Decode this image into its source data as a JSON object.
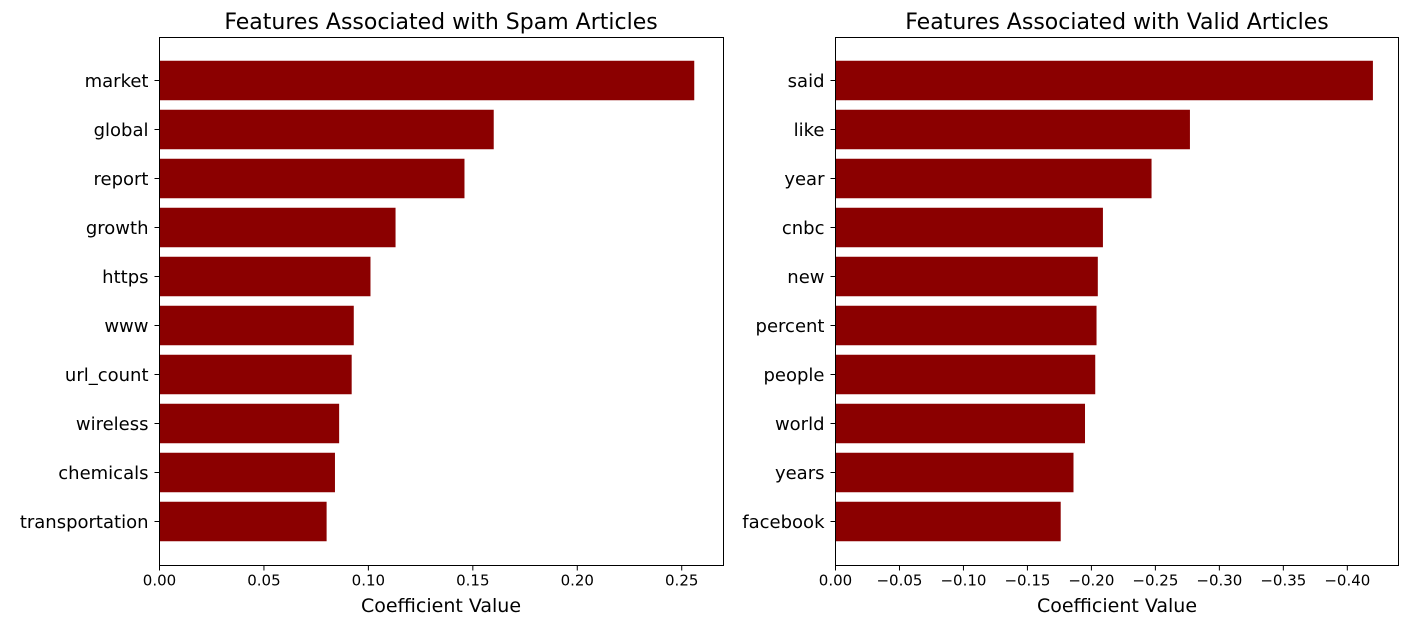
{
  "chart_data": [
    {
      "type": "bar",
      "orientation": "horizontal",
      "title": "Features Associated with Spam Articles",
      "xlabel": "Coefficient Value",
      "ylabel": "",
      "categories": [
        "market",
        "global",
        "report",
        "growth",
        "https",
        "www",
        "url_count",
        "wireless",
        "chemicals",
        "transportation"
      ],
      "values": [
        0.256,
        0.16,
        0.146,
        0.113,
        0.101,
        0.093,
        0.092,
        0.086,
        0.084,
        0.08
      ],
      "xlim": [
        0,
        0.27
      ],
      "xticks": [
        0,
        0.05,
        0.1,
        0.15,
        0.2,
        0.25
      ],
      "xtick_labels": [
        "0.00",
        "0.05",
        "0.10",
        "0.15",
        "0.20",
        "0.25"
      ],
      "bar_color": "#8b0000",
      "grid": false
    },
    {
      "type": "bar",
      "orientation": "horizontal",
      "x_axis_inverted": true,
      "title": "Features Associated with Valid Articles",
      "xlabel": "Coefficient Value",
      "ylabel": "",
      "categories": [
        "said",
        "like",
        "year",
        "cnbc",
        "new",
        "percent",
        "people",
        "world",
        "years",
        "facebook"
      ],
      "values": [
        -0.42,
        -0.277,
        -0.247,
        -0.209,
        -0.205,
        -0.204,
        -0.203,
        -0.195,
        -0.186,
        -0.176
      ],
      "xlim": [
        0,
        -0.44
      ],
      "xticks": [
        0,
        -0.05,
        -0.1,
        -0.15,
        -0.2,
        -0.25,
        -0.3,
        -0.35,
        -0.4
      ],
      "xtick_labels": [
        "0.00",
        "−0.05",
        "−0.10",
        "−0.15",
        "−0.20",
        "−0.25",
        "−0.30",
        "−0.35",
        "−0.40"
      ],
      "bar_color": "#8b0000",
      "grid": false
    }
  ]
}
